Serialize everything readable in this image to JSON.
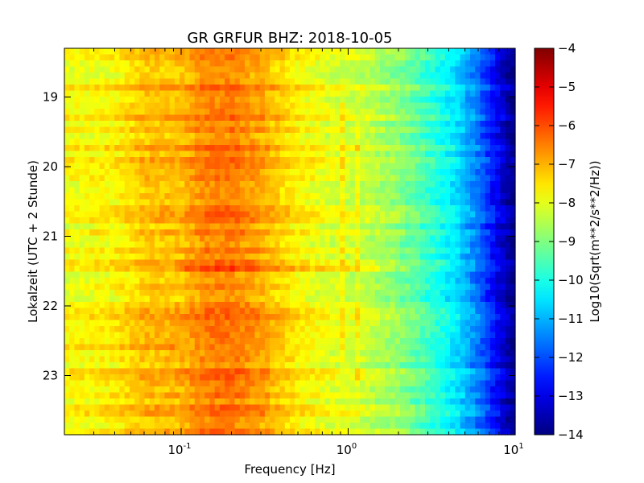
{
  "chart_data": {
    "type": "heatmap",
    "title": "GR GRFUR BHZ: 2018-10-05",
    "xlabel": "Frequency [Hz]",
    "ylabel": "Lokalzeit (UTC + 2 Stunde)",
    "x_scale": "log",
    "xlim": [
      0.02,
      10
    ],
    "ylim": [
      18.3,
      23.85
    ],
    "y_inverted": true,
    "x_ticks": [
      {
        "base": "10",
        "exp": "-1",
        "value": 0.1
      },
      {
        "base": "10",
        "exp": "0",
        "value": 1
      },
      {
        "base": "10",
        "exp": "1",
        "value": 10
      }
    ],
    "y_ticks": [
      {
        "label": "19",
        "value": 19
      },
      {
        "label": "20",
        "value": 20
      },
      {
        "label": "21",
        "value": 21
      },
      {
        "label": "22",
        "value": 22
      },
      {
        "label": "23",
        "value": 23
      }
    ],
    "colormap": "jet",
    "colorbar": {
      "label": "Log10(Sqrt(m**2/s**2/Hz))",
      "range": [
        -14,
        -4
      ],
      "ticks": [
        "-4",
        "-5",
        "-6",
        "-7",
        "-8",
        "-9",
        "-10",
        "-11",
        "-12",
        "-13",
        "-14"
      ]
    },
    "profile": {
      "freq": [
        0.02,
        0.04,
        0.06,
        0.1,
        0.14,
        0.2,
        0.3,
        0.5,
        0.8,
        1.2,
        2,
        3,
        4.5,
        6,
        7.5,
        9,
        10
      ],
      "value": [
        -7.8,
        -7.6,
        -7.1,
        -7.0,
        -6.5,
        -6.4,
        -6.8,
        -7.6,
        -8.0,
        -8.2,
        -8.8,
        -9.6,
        -10.5,
        -11.6,
        -12.6,
        -13.5,
        -13.9
      ]
    },
    "events": [
      {
        "time": 21.48,
        "freq_range": [
          0.1,
          1.5
        ],
        "delta": 0.5
      },
      {
        "time": 22.6,
        "freq_range": [
          0.02,
          0.1
        ],
        "delta": 0.5
      }
    ],
    "spectral_lines": [
      {
        "freq": 0.95,
        "time_range": [
          19.1,
          22.9
        ],
        "delta": 0.45
      },
      {
        "freq": 1.15,
        "time_range": [
          19.3,
          23.1
        ],
        "delta": 0.45
      }
    ]
  }
}
